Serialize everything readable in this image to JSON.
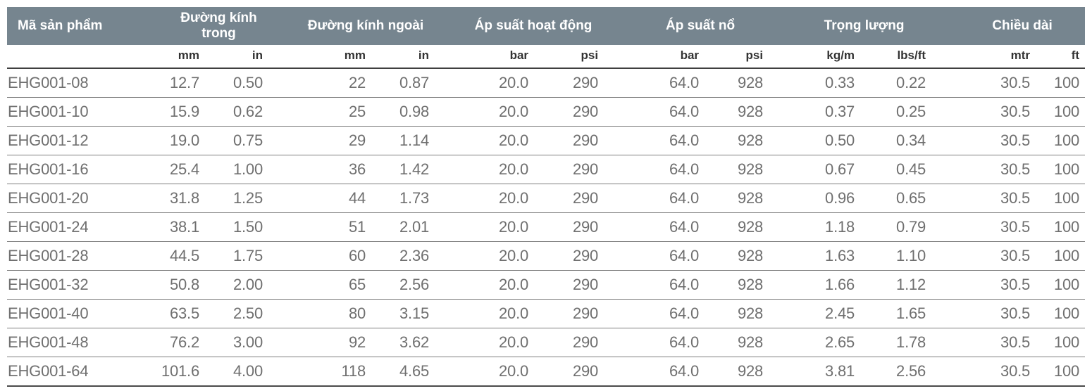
{
  "page": {
    "background": "#ffffff"
  },
  "table": {
    "product_header": "Mã sản phẩm",
    "groups": [
      {
        "label": "Đường kính trong",
        "units": [
          "mm",
          "in"
        ]
      },
      {
        "label": "Đường kính ngoài",
        "units": [
          "mm",
          "in"
        ]
      },
      {
        "label": "Áp suất hoạt động",
        "units": [
          "bar",
          "psi"
        ]
      },
      {
        "label": "Áp suất nổ",
        "units": [
          "bar",
          "psi"
        ]
      },
      {
        "label": "Trọng lượng",
        "units": [
          "kg/m",
          "lbs/ft"
        ]
      },
      {
        "label": "Chiều dài",
        "units": [
          "mtr",
          "ft"
        ]
      }
    ],
    "colors": {
      "header_bg": "#76858F",
      "header_text": "#ffffff",
      "units_text": "#333333",
      "data_text": "#6f6f6f",
      "row_divider": "#7d7d7d",
      "strong_divider": "#3f3f3f"
    },
    "rows": [
      {
        "code": "EHG001-08",
        "values": [
          "12.7",
          "0.50",
          "22",
          "0.87",
          "20.0",
          "290",
          "64.0",
          "928",
          "0.33",
          "0.22",
          "30.5",
          "100"
        ]
      },
      {
        "code": "EHG001-10",
        "values": [
          "15.9",
          "0.62",
          "25",
          "0.98",
          "20.0",
          "290",
          "64.0",
          "928",
          "0.37",
          "0.25",
          "30.5",
          "100"
        ]
      },
      {
        "code": "EHG001-12",
        "values": [
          "19.0",
          "0.75",
          "29",
          "1.14",
          "20.0",
          "290",
          "64.0",
          "928",
          "0.50",
          "0.34",
          "30.5",
          "100"
        ]
      },
      {
        "code": "EHG001-16",
        "values": [
          "25.4",
          "1.00",
          "36",
          "1.42",
          "20.0",
          "290",
          "64.0",
          "928",
          "0.67",
          "0.45",
          "30.5",
          "100"
        ]
      },
      {
        "code": "EHG001-20",
        "values": [
          "31.8",
          "1.25",
          "44",
          "1.73",
          "20.0",
          "290",
          "64.0",
          "928",
          "0.96",
          "0.65",
          "30.5",
          "100"
        ]
      },
      {
        "code": "EHG001-24",
        "values": [
          "38.1",
          "1.50",
          "51",
          "2.01",
          "20.0",
          "290",
          "64.0",
          "928",
          "1.18",
          "0.79",
          "30.5",
          "100"
        ]
      },
      {
        "code": "EHG001-28",
        "values": [
          "44.5",
          "1.75",
          "60",
          "2.36",
          "20.0",
          "290",
          "64.0",
          "928",
          "1.63",
          "1.10",
          "30.5",
          "100"
        ]
      },
      {
        "code": "EHG001-32",
        "values": [
          "50.8",
          "2.00",
          "65",
          "2.56",
          "20.0",
          "290",
          "64.0",
          "928",
          "1.66",
          "1.12",
          "30.5",
          "100"
        ]
      },
      {
        "code": "EHG001-40",
        "values": [
          "63.5",
          "2.50",
          "80",
          "3.15",
          "20.0",
          "290",
          "64.0",
          "928",
          "2.45",
          "1.65",
          "30.5",
          "100"
        ]
      },
      {
        "code": "EHG001-48",
        "values": [
          "76.2",
          "3.00",
          "92",
          "3.62",
          "20.0",
          "290",
          "64.0",
          "928",
          "2.65",
          "1.78",
          "30.5",
          "100"
        ]
      },
      {
        "code": "EHG001-64",
        "values": [
          "101.6",
          "4.00",
          "118",
          "4.65",
          "20.0",
          "290",
          "64.0",
          "928",
          "3.81",
          "2.56",
          "30.5",
          "100"
        ]
      }
    ]
  }
}
